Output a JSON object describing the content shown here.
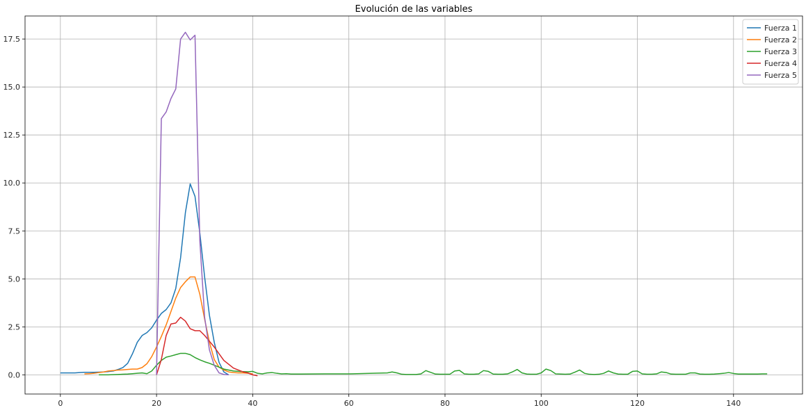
{
  "chart_data": {
    "type": "line",
    "title": "Evolución de las variables",
    "xlabel": "",
    "ylabel": "",
    "xlim": [
      -7.35,
      154.35
    ],
    "ylim": [
      -1.0,
      18.7
    ],
    "xticks": [
      0,
      20,
      40,
      60,
      80,
      100,
      120,
      140
    ],
    "yticks": [
      0.0,
      2.5,
      5.0,
      7.5,
      10.0,
      12.5,
      15.0,
      17.5
    ],
    "ytick_labels": [
      "0.0",
      "2.5",
      "5.0",
      "7.5",
      "10.0",
      "12.5",
      "15.0",
      "17.5"
    ],
    "grid": true,
    "legend_position": "top-right",
    "series": [
      {
        "name": "Fuerza 1",
        "color": "#1f77b4",
        "x": [
          0,
          1,
          2,
          3,
          4,
          5,
          6,
          7,
          8,
          9,
          10,
          11,
          12,
          13,
          14,
          15,
          16,
          17,
          18,
          19,
          20,
          21,
          22,
          23,
          24,
          25,
          26,
          27,
          28,
          29,
          30,
          31,
          32,
          33,
          34,
          35
        ],
        "y": [
          0.1,
          0.1,
          0.1,
          0.1,
          0.12,
          0.13,
          0.13,
          0.13,
          0.14,
          0.15,
          0.17,
          0.2,
          0.28,
          0.38,
          0.6,
          1.1,
          1.7,
          2.05,
          2.2,
          2.45,
          2.85,
          3.2,
          3.4,
          3.75,
          4.5,
          6.1,
          8.45,
          9.95,
          9.3,
          7.4,
          5.1,
          3.1,
          1.7,
          0.65,
          0.15,
          0.0
        ]
      },
      {
        "name": "Fuerza 2",
        "color": "#ff7f0e",
        "x": [
          5,
          6,
          7,
          8,
          9,
          10,
          11,
          12,
          13,
          14,
          15,
          16,
          17,
          18,
          19,
          20,
          21,
          22,
          23,
          24,
          25,
          26,
          27,
          28,
          29,
          30,
          31,
          32,
          33,
          34,
          35,
          36,
          37,
          38,
          39,
          40
        ],
        "y": [
          0.05,
          0.06,
          0.08,
          0.12,
          0.15,
          0.2,
          0.22,
          0.25,
          0.26,
          0.28,
          0.3,
          0.3,
          0.38,
          0.58,
          0.95,
          1.45,
          2.0,
          2.6,
          3.3,
          4.0,
          4.55,
          4.85,
          5.1,
          5.1,
          4.2,
          2.9,
          1.7,
          0.8,
          0.4,
          0.25,
          0.15,
          0.12,
          0.1,
          0.1,
          0.08,
          0.05
        ]
      },
      {
        "name": "Fuerza 3",
        "color": "#2ca02c",
        "x": [
          8,
          9,
          10,
          11,
          12,
          13,
          14,
          15,
          16,
          17,
          18,
          19,
          20,
          21,
          22,
          23,
          24,
          25,
          26,
          27,
          28,
          29,
          30,
          31,
          32,
          33,
          34,
          35,
          36,
          37,
          38,
          39,
          40,
          41,
          42,
          43,
          44,
          45,
          46,
          47,
          48,
          49,
          50,
          55,
          60,
          65,
          68,
          69,
          70,
          71,
          72,
          73,
          74,
          75,
          76,
          77,
          78,
          79,
          80,
          81,
          82,
          83,
          84,
          85,
          86,
          87,
          88,
          89,
          90,
          91,
          92,
          93,
          94,
          95,
          96,
          97,
          98,
          99,
          100,
          101,
          102,
          103,
          104,
          105,
          106,
          107,
          108,
          109,
          110,
          111,
          112,
          113,
          114,
          115,
          116,
          117,
          118,
          119,
          120,
          121,
          122,
          123,
          124,
          125,
          126,
          127,
          128,
          129,
          130,
          131,
          132,
          133,
          134,
          135,
          136,
          137,
          138,
          139,
          140,
          141,
          142,
          143,
          144,
          145,
          146,
          147
        ],
        "y": [
          0.0,
          0.0,
          0.0,
          0.01,
          0.02,
          0.03,
          0.04,
          0.06,
          0.08,
          0.1,
          0.06,
          0.2,
          0.5,
          0.75,
          0.92,
          0.98,
          1.05,
          1.12,
          1.12,
          1.05,
          0.9,
          0.78,
          0.68,
          0.6,
          0.5,
          0.4,
          0.3,
          0.25,
          0.2,
          0.18,
          0.17,
          0.16,
          0.18,
          0.08,
          0.05,
          0.1,
          0.12,
          0.08,
          0.05,
          0.06,
          0.04,
          0.04,
          0.04,
          0.05,
          0.05,
          0.08,
          0.1,
          0.15,
          0.1,
          0.03,
          0.02,
          0.02,
          0.02,
          0.05,
          0.22,
          0.13,
          0.04,
          0.03,
          0.03,
          0.03,
          0.2,
          0.23,
          0.05,
          0.03,
          0.03,
          0.05,
          0.22,
          0.18,
          0.04,
          0.03,
          0.03,
          0.05,
          0.15,
          0.28,
          0.1,
          0.04,
          0.03,
          0.03,
          0.1,
          0.3,
          0.22,
          0.05,
          0.04,
          0.03,
          0.04,
          0.14,
          0.25,
          0.08,
          0.03,
          0.02,
          0.03,
          0.08,
          0.2,
          0.1,
          0.04,
          0.03,
          0.03,
          0.18,
          0.2,
          0.05,
          0.03,
          0.03,
          0.05,
          0.15,
          0.12,
          0.04,
          0.03,
          0.03,
          0.03,
          0.1,
          0.1,
          0.04,
          0.03,
          0.03,
          0.04,
          0.06,
          0.08,
          0.12,
          0.07,
          0.04,
          0.04,
          0.04,
          0.04,
          0.04,
          0.05,
          0.05
        ]
      },
      {
        "name": "Fuerza 4",
        "color": "#d62728",
        "x": [
          20,
          21,
          22,
          23,
          24,
          25,
          26,
          27,
          28,
          29,
          30,
          31,
          32,
          33,
          34,
          35,
          36,
          37,
          38,
          39,
          40,
          41
        ],
        "y": [
          0.0,
          0.8,
          2.05,
          2.65,
          2.7,
          3.0,
          2.8,
          2.4,
          2.3,
          2.3,
          2.05,
          1.75,
          1.45,
          1.1,
          0.75,
          0.55,
          0.35,
          0.25,
          0.15,
          0.1,
          0.0,
          -0.05
        ]
      },
      {
        "name": "Fuerza 5",
        "color": "#9467bd",
        "x": [
          20,
          21,
          22,
          23,
          24,
          25,
          26,
          27,
          28,
          29,
          30,
          31,
          32,
          33,
          34,
          35
        ],
        "y": [
          0.0,
          13.35,
          13.7,
          14.4,
          14.9,
          17.5,
          17.85,
          17.45,
          17.7,
          7.0,
          3.0,
          1.3,
          0.5,
          0.1,
          0.02,
          0.0
        ]
      }
    ]
  }
}
